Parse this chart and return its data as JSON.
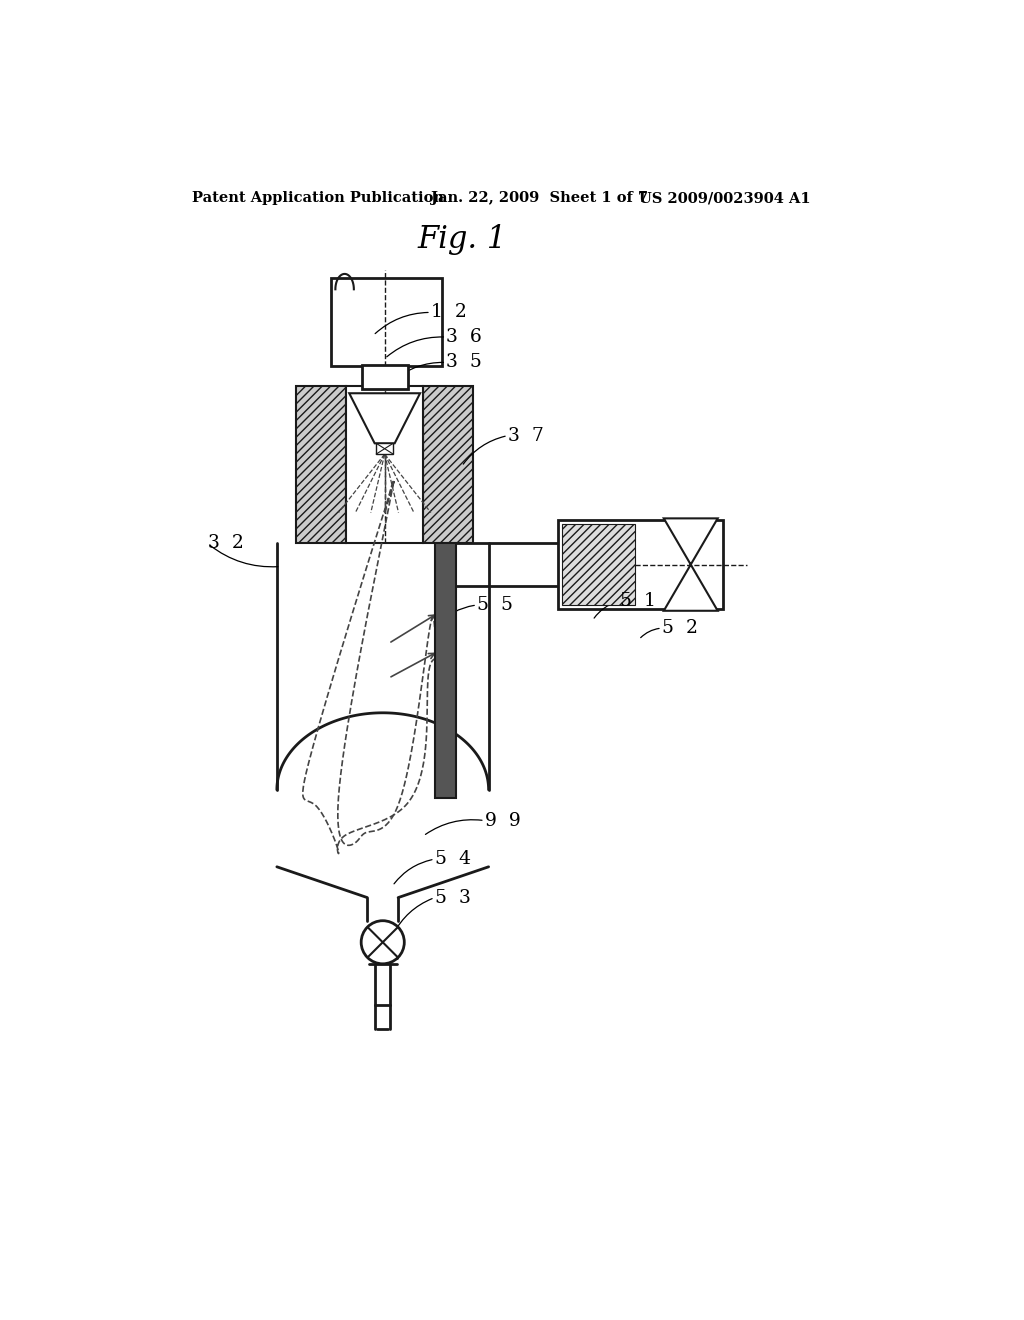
{
  "bg_color": "#ffffff",
  "header_left": "Patent Application Publication",
  "header_mid": "Jan. 22, 2009  Sheet 1 of 7",
  "header_right": "US 2009/0023904 A1",
  "fig_title": "Fig. 1",
  "line_color": "#1a1a1a",
  "hatch_color": "#555555",
  "dashed_color": "#444444",
  "gray_fill": "#888888"
}
